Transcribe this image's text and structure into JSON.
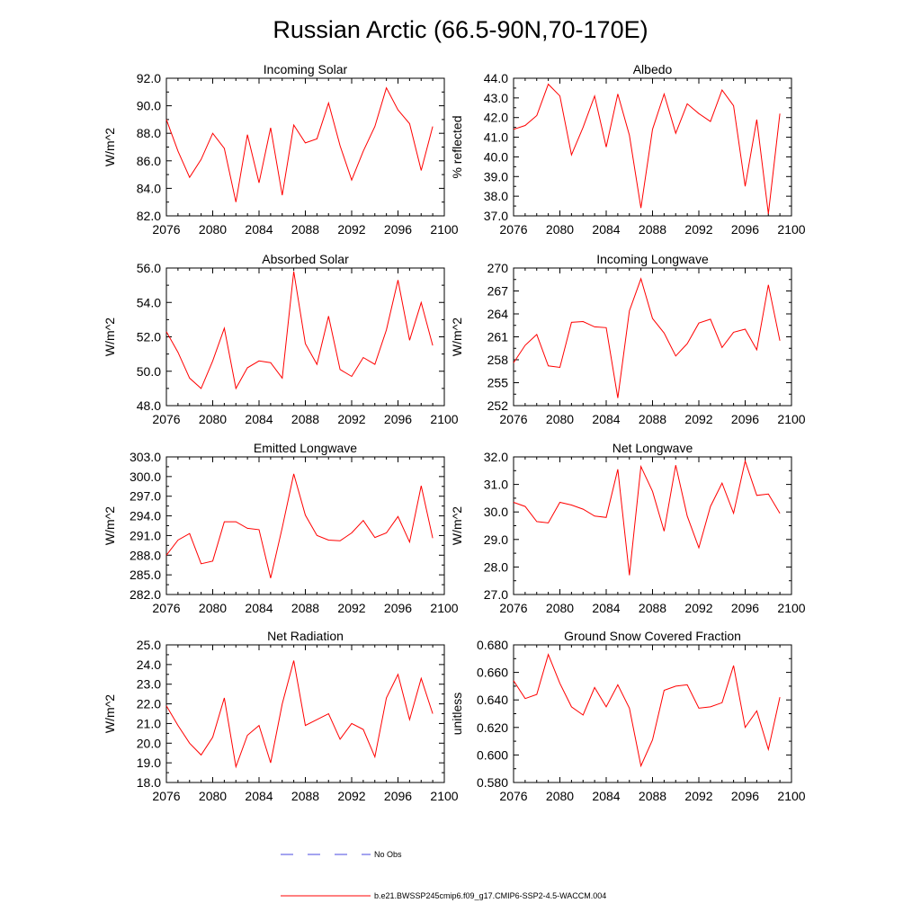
{
  "page": {
    "title": "Russian Arctic (66.5-90N,70-170E)",
    "legend": [
      {
        "label": "No Obs",
        "color": "#4a4ae0",
        "style": "dashed"
      },
      {
        "label": "b.e21.BWSSP245cmip6.f09_g17.CMIP6-SSP2-4.5-WACCM.004",
        "color": "#ff0000",
        "style": "solid"
      }
    ]
  },
  "chart_data": [
    {
      "type": "line",
      "title": "Incoming Solar",
      "ylabel": "W/m^2",
      "xlim": [
        2076,
        2100
      ],
      "xticks": [
        2076,
        2080,
        2084,
        2088,
        2092,
        2096,
        2100
      ],
      "ylim": [
        82.0,
        92.0
      ],
      "yticks": [
        "82.0",
        "84.0",
        "86.0",
        "88.0",
        "90.0",
        "92.0"
      ],
      "x": [
        2076,
        2077,
        2078,
        2079,
        2080,
        2081,
        2082,
        2083,
        2084,
        2085,
        2086,
        2087,
        2088,
        2089,
        2090,
        2091,
        2092,
        2093,
        2094,
        2095,
        2096,
        2097,
        2098,
        2099
      ],
      "series": [
        {
          "name": "b.e21.BWSSP245cmip6.f09_g17.CMIP6-SSP2-4.5-WACCM.004",
          "color": "#ff0000",
          "values": [
            89.0,
            86.7,
            84.8,
            86.1,
            88.0,
            86.9,
            83.0,
            87.9,
            84.4,
            88.4,
            83.5,
            88.6,
            87.3,
            87.6,
            90.2,
            87.1,
            84.6,
            86.7,
            88.5,
            91.3,
            89.7,
            88.7,
            85.3,
            88.5
          ]
        }
      ]
    },
    {
      "type": "line",
      "title": "Albedo",
      "ylabel": "% reflected",
      "xlim": [
        2076,
        2100
      ],
      "xticks": [
        2076,
        2080,
        2084,
        2088,
        2092,
        2096,
        2100
      ],
      "ylim": [
        37.0,
        44.0
      ],
      "yticks": [
        "37.0",
        "38.0",
        "39.0",
        "40.0",
        "41.0",
        "42.0",
        "43.0",
        "44.0"
      ],
      "x": [
        2076,
        2077,
        2078,
        2079,
        2080,
        2081,
        2082,
        2083,
        2084,
        2085,
        2086,
        2087,
        2088,
        2089,
        2090,
        2091,
        2092,
        2093,
        2094,
        2095,
        2096,
        2097,
        2098,
        2099
      ],
      "series": [
        {
          "name": "b.e21.BWSSP245cmip6.f09_g17.CMIP6-SSP2-4.5-WACCM.004",
          "color": "#ff0000",
          "values": [
            41.4,
            41.6,
            42.1,
            43.7,
            43.1,
            40.1,
            41.5,
            43.1,
            40.5,
            43.2,
            41.1,
            37.4,
            41.4,
            43.2,
            41.2,
            42.7,
            42.2,
            41.8,
            43.4,
            42.6,
            38.5,
            41.9,
            37.1,
            42.2
          ]
        }
      ]
    },
    {
      "type": "line",
      "title": "Absorbed Solar",
      "ylabel": "W/m^2",
      "xlim": [
        2076,
        2100
      ],
      "xticks": [
        2076,
        2080,
        2084,
        2088,
        2092,
        2096,
        2100
      ],
      "ylim": [
        48.0,
        56.0
      ],
      "yticks": [
        "48.0",
        "50.0",
        "52.0",
        "54.0",
        "56.0"
      ],
      "x": [
        2076,
        2077,
        2078,
        2079,
        2080,
        2081,
        2082,
        2083,
        2084,
        2085,
        2086,
        2087,
        2088,
        2089,
        2090,
        2091,
        2092,
        2093,
        2094,
        2095,
        2096,
        2097,
        2098,
        2099
      ],
      "series": [
        {
          "name": "b.e21.BWSSP245cmip6.f09_g17.CMIP6-SSP2-4.5-WACCM.004",
          "color": "#ff0000",
          "values": [
            52.3,
            51.1,
            49.6,
            49.0,
            50.6,
            52.5,
            49.0,
            50.2,
            50.6,
            50.5,
            49.6,
            55.8,
            51.6,
            50.4,
            53.2,
            50.1,
            49.7,
            50.8,
            50.4,
            52.4,
            55.3,
            51.8,
            54.0,
            51.5
          ]
        }
      ]
    },
    {
      "type": "line",
      "title": "Incoming Longwave",
      "ylabel": "W/m^2",
      "xlim": [
        2076,
        2100
      ],
      "xticks": [
        2076,
        2080,
        2084,
        2088,
        2092,
        2096,
        2100
      ],
      "ylim": [
        252,
        270
      ],
      "yticks": [
        "252",
        "255",
        "258",
        "261",
        "264",
        "267",
        "270"
      ],
      "x": [
        2076,
        2077,
        2078,
        2079,
        2080,
        2081,
        2082,
        2083,
        2084,
        2085,
        2086,
        2087,
        2088,
        2089,
        2090,
        2091,
        2092,
        2093,
        2094,
        2095,
        2096,
        2097,
        2098,
        2099
      ],
      "series": [
        {
          "name": "b.e21.BWSSP245cmip6.f09_g17.CMIP6-SSP2-4.5-WACCM.004",
          "color": "#ff0000",
          "values": [
            257.6,
            259.9,
            261.3,
            257.2,
            257.0,
            262.9,
            263.0,
            262.3,
            262.2,
            253.0,
            264.4,
            268.6,
            263.4,
            261.5,
            258.5,
            260.1,
            262.8,
            263.3,
            259.6,
            261.6,
            262.0,
            259.3,
            267.8,
            260.5
          ]
        }
      ]
    },
    {
      "type": "line",
      "title": "Emitted Longwave",
      "ylabel": "W/m^2",
      "xlim": [
        2076,
        2100
      ],
      "xticks": [
        2076,
        2080,
        2084,
        2088,
        2092,
        2096,
        2100
      ],
      "ylim": [
        282.0,
        303.0
      ],
      "yticks": [
        "282.0",
        "285.0",
        "288.0",
        "291.0",
        "294.0",
        "297.0",
        "300.0",
        "303.0"
      ],
      "x": [
        2076,
        2077,
        2078,
        2079,
        2080,
        2081,
        2082,
        2083,
        2084,
        2085,
        2086,
        2087,
        2088,
        2089,
        2090,
        2091,
        2092,
        2093,
        2094,
        2095,
        2096,
        2097,
        2098,
        2099
      ],
      "series": [
        {
          "name": "b.e21.BWSSP245cmip6.f09_g17.CMIP6-SSP2-4.5-WACCM.004",
          "color": "#ff0000",
          "values": [
            288.0,
            290.3,
            291.3,
            286.7,
            287.1,
            293.1,
            293.1,
            292.1,
            291.9,
            284.5,
            292.2,
            300.4,
            294.1,
            291.0,
            290.3,
            290.2,
            291.4,
            293.3,
            290.7,
            291.4,
            293.9,
            290.0,
            298.6,
            290.6
          ]
        }
      ]
    },
    {
      "type": "line",
      "title": "Net Longwave",
      "ylabel": "W/m^2",
      "xlim": [
        2076,
        2100
      ],
      "xticks": [
        2076,
        2080,
        2084,
        2088,
        2092,
        2096,
        2100
      ],
      "ylim": [
        27.0,
        32.0
      ],
      "yticks": [
        "27.0",
        "28.0",
        "29.0",
        "30.0",
        "31.0",
        "32.0"
      ],
      "x": [
        2076,
        2077,
        2078,
        2079,
        2080,
        2081,
        2082,
        2083,
        2084,
        2085,
        2086,
        2087,
        2088,
        2089,
        2090,
        2091,
        2092,
        2093,
        2094,
        2095,
        2096,
        2097,
        2098,
        2099
      ],
      "series": [
        {
          "name": "b.e21.BWSSP245cmip6.f09_g17.CMIP6-SSP2-4.5-WACCM.004",
          "color": "#ff0000",
          "values": [
            30.35,
            30.2,
            29.65,
            29.6,
            30.35,
            30.25,
            30.1,
            29.85,
            29.8,
            31.55,
            27.7,
            31.65,
            30.75,
            29.3,
            31.7,
            29.85,
            28.7,
            30.2,
            31.05,
            29.95,
            31.85,
            30.6,
            30.65,
            29.95
          ]
        }
      ]
    },
    {
      "type": "line",
      "title": "Net Radiation",
      "ylabel": "W/m^2",
      "xlim": [
        2076,
        2100
      ],
      "xticks": [
        2076,
        2080,
        2084,
        2088,
        2092,
        2096,
        2100
      ],
      "ylim": [
        18.0,
        25.0
      ],
      "yticks": [
        "18.0",
        "19.0",
        "20.0",
        "21.0",
        "22.0",
        "23.0",
        "24.0",
        "25.0"
      ],
      "x": [
        2076,
        2077,
        2078,
        2079,
        2080,
        2081,
        2082,
        2083,
        2084,
        2085,
        2086,
        2087,
        2088,
        2089,
        2090,
        2091,
        2092,
        2093,
        2094,
        2095,
        2096,
        2097,
        2098,
        2099
      ],
      "series": [
        {
          "name": "b.e21.BWSSP245cmip6.f09_g17.CMIP6-SSP2-4.5-WACCM.004",
          "color": "#ff0000",
          "values": [
            21.9,
            20.9,
            20.0,
            19.4,
            20.3,
            22.3,
            18.8,
            20.4,
            20.9,
            19.0,
            22.0,
            24.2,
            20.9,
            21.2,
            21.5,
            20.2,
            21.0,
            20.7,
            19.3,
            22.3,
            23.5,
            21.2,
            23.3,
            21.5
          ]
        }
      ]
    },
    {
      "type": "line",
      "title": "Ground Snow Covered Fraction",
      "ylabel": "unitless",
      "xlim": [
        2076,
        2100
      ],
      "xticks": [
        2076,
        2080,
        2084,
        2088,
        2092,
        2096,
        2100
      ],
      "ylim": [
        0.58,
        0.68
      ],
      "yticks": [
        "0.580",
        "0.600",
        "0.620",
        "0.640",
        "0.660",
        "0.680"
      ],
      "x": [
        2076,
        2077,
        2078,
        2079,
        2080,
        2081,
        2082,
        2083,
        2084,
        2085,
        2086,
        2087,
        2088,
        2089,
        2090,
        2091,
        2092,
        2093,
        2094,
        2095,
        2096,
        2097,
        2098,
        2099
      ],
      "series": [
        {
          "name": "b.e21.BWSSP245cmip6.f09_g17.CMIP6-SSP2-4.5-WACCM.004",
          "color": "#ff0000",
          "values": [
            0.654,
            0.641,
            0.644,
            0.673,
            0.652,
            0.635,
            0.629,
            0.649,
            0.635,
            0.651,
            0.634,
            0.592,
            0.611,
            0.647,
            0.65,
            0.651,
            0.634,
            0.635,
            0.638,
            0.665,
            0.62,
            0.632,
            0.604,
            0.642
          ]
        }
      ]
    }
  ]
}
